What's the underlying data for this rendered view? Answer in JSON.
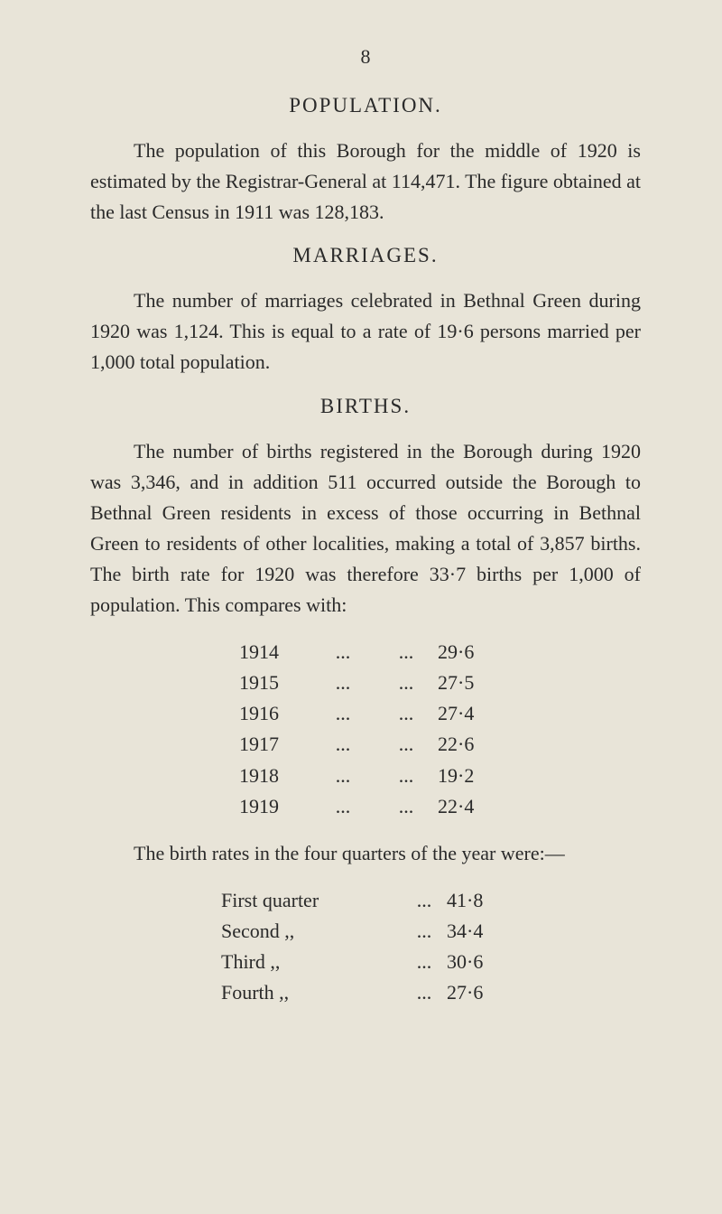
{
  "page_number": "8",
  "sections": {
    "population": {
      "heading": "POPULATION.",
      "paragraph": "The population of this Borough for the middle of 1920 is estimated by the Registrar-General at 114,471. The figure obtained at the last Census in 1911 was 128,183."
    },
    "marriages": {
      "heading": "MARRIAGES.",
      "paragraph": "The number of marriages celebrated in Bethnal Green during 1920 was 1,124. This is equal to a rate of 19·6 persons married per 1,000 total population."
    },
    "births": {
      "heading": "BIRTHS.",
      "paragraph": "The number of births registered in the Borough during 1920 was 3,346, and in addition 511 occurred outside the Borough to Bethnal Green residents in excess of those occurring in Bethnal Green to residents of other localities, making a total of 3,857 births. The birth rate for 1920 was therefore 33·7 births per 1,000 of population. This compares with:",
      "year_data": [
        {
          "year": "1914",
          "value": "29·6"
        },
        {
          "year": "1915",
          "value": "27·5"
        },
        {
          "year": "1916",
          "value": "27·4"
        },
        {
          "year": "1917",
          "value": "22·6"
        },
        {
          "year": "1918",
          "value": "19·2"
        },
        {
          "year": "1919",
          "value": "22·4"
        }
      ],
      "quarter_intro": "The birth rates in the four quarters of the year were:—",
      "quarter_data": [
        {
          "label": "First quarter",
          "value": "41·8"
        },
        {
          "label": "Second ,,",
          "value": "34·4"
        },
        {
          "label": "Third ,,",
          "value": "30·6"
        },
        {
          "label": "Fourth ,,",
          "value": "27·6"
        }
      ]
    }
  },
  "dots": "...",
  "colors": {
    "background": "#e8e4d8",
    "text": "#2a2a2a"
  },
  "typography": {
    "body_fontsize": 22,
    "heading_fontsize": 23,
    "line_height": 1.55,
    "font_family": "Georgia, Times New Roman, serif"
  }
}
